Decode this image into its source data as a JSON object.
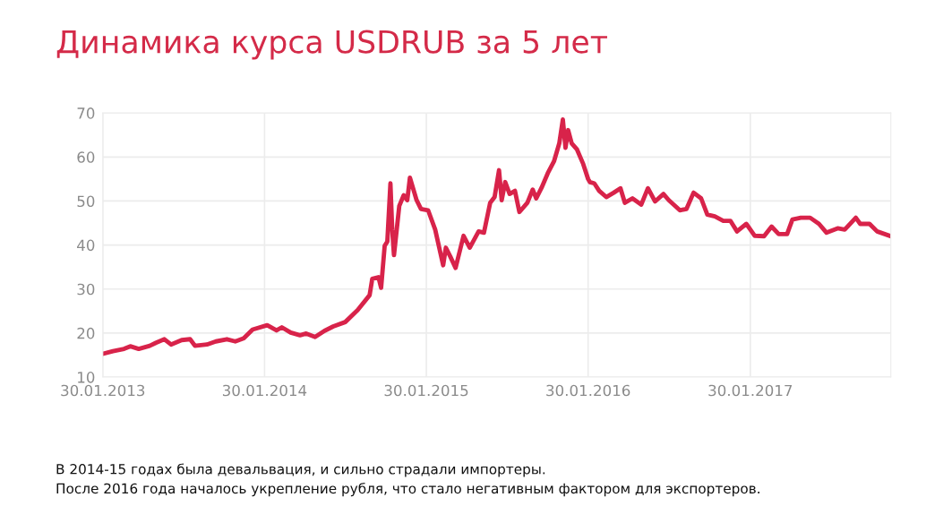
{
  "chart_data": {
    "type": "line",
    "title": "Динамика курса USDRUB за 5 лет",
    "annotations": [
      "В 2014-15 годах была девальвация, и сильно страдали импортеры.",
      "После 2016 года началось укрепление рубля, что стало негативным фактором для экспортеров."
    ],
    "x": [
      "2013-02-03",
      "2013-02-22",
      "2013-03-19",
      "2013-04-02",
      "2013-04-21",
      "2013-05-16",
      "2013-05-30",
      "2013-06-18",
      "2013-07-03",
      "2013-07-27",
      "2013-08-15",
      "2013-08-26",
      "2013-09-22",
      "2013-10-12",
      "2013-11-06",
      "2013-11-25",
      "2013-12-14",
      "2014-01-03",
      "2014-02-05",
      "2014-02-26",
      "2014-03-10",
      "2014-03-30",
      "2014-04-20",
      "2014-05-04",
      "2014-05-24",
      "2014-06-14",
      "2014-07-04",
      "2014-07-31",
      "2014-08-28",
      "2014-09-24",
      "2014-09-30",
      "2014-10-14",
      "2014-10-20",
      "2014-10-28",
      "2014-11-03",
      "2014-11-10",
      "2014-11-14",
      "2014-11-18",
      "2014-11-30",
      "2014-12-10",
      "2014-12-18",
      "2014-12-24",
      "2015-01-08",
      "2015-01-18",
      "2015-02-03",
      "2015-02-19",
      "2015-03-09",
      "2015-03-15",
      "2015-03-25",
      "2015-04-06",
      "2015-04-24",
      "2015-05-08",
      "2015-05-28",
      "2015-06-09",
      "2015-06-23",
      "2015-07-03",
      "2015-07-13",
      "2015-07-19",
      "2015-07-27",
      "2015-08-06",
      "2015-08-18",
      "2015-08-28",
      "2015-09-15",
      "2015-09-27",
      "2015-10-05",
      "2015-10-17",
      "2015-10-31",
      "2015-11-14",
      "2015-11-26",
      "2015-12-04",
      "2015-12-10",
      "2015-12-16",
      "2015-12-24",
      "2016-01-05",
      "2016-01-19",
      "2016-01-30",
      "2016-02-03",
      "2016-02-13",
      "2016-02-24",
      "2016-03-11",
      "2016-03-28",
      "2016-04-12",
      "2016-04-22",
      "2016-05-09",
      "2016-05-29",
      "2016-06-13",
      "2016-06-29",
      "2016-07-18",
      "2016-07-30",
      "2016-08-24",
      "2016-09-08",
      "2016-09-24",
      "2016-10-11",
      "2016-10-25",
      "2016-11-11",
      "2016-11-30",
      "2016-12-16",
      "2016-12-31",
      "2017-01-21",
      "2017-02-09",
      "2017-03-02",
      "2017-03-19",
      "2017-04-04",
      "2017-04-23",
      "2017-05-05",
      "2017-05-24",
      "2017-06-14",
      "2017-07-04",
      "2017-07-21",
      "2017-08-15",
      "2017-08-31",
      "2017-09-25",
      "2017-10-05",
      "2017-10-26",
      "2017-11-12",
      "2017-12-13"
    ],
    "series": [
      {
        "color": "#d8234a",
        "values": [
          15.4,
          15.9,
          16.4,
          17,
          16.4,
          17.1,
          17.8,
          18.6,
          17.4,
          18.4,
          18.6,
          17.1,
          17.4,
          18.1,
          18.6,
          18.1,
          18.8,
          20.8,
          21.8,
          20.6,
          21.3,
          20.1,
          19.5,
          19.9,
          19.1,
          20.5,
          21.5,
          22.5,
          25.2,
          28.6,
          32.3,
          32.7,
          30.3,
          39.8,
          40.8,
          54,
          43.5,
          37.7,
          48.9,
          51.3,
          50.2,
          55.3,
          50.2,
          48.2,
          47.9,
          43.5,
          35.4,
          39.4,
          37.4,
          34.8,
          42.1,
          39.4,
          43.1,
          42.8,
          49.6,
          50.9,
          57,
          50.2,
          54.3,
          51.6,
          52.3,
          47.5,
          49.6,
          52.6,
          50.6,
          53,
          56.3,
          59,
          63.1,
          68.5,
          62.1,
          66.1,
          63.1,
          61.7,
          58.4,
          55,
          54.3,
          54,
          52.3,
          50.9,
          51.9,
          52.9,
          49.6,
          50.6,
          49.2,
          52.9,
          49.9,
          51.6,
          50.2,
          47.9,
          48.2,
          51.9,
          50.6,
          46.9,
          46.5,
          45.5,
          45.5,
          43.1,
          44.8,
          42.1,
          42,
          44.2,
          42.5,
          42.5,
          45.8,
          46.2,
          46.2,
          44.8,
          42.8,
          43.8,
          43.5,
          46.2,
          44.8,
          44.8,
          43.1,
          42
        ]
      }
    ],
    "xlim": [
      "2013-01-30",
      "2017-12-13"
    ],
    "xticks": [
      {
        "value": "2013-01-30",
        "label": "30.01.2013"
      },
      {
        "value": "2014-01-30",
        "label": "30.01.2014"
      },
      {
        "value": "2015-01-30",
        "label": "30.01.2015"
      },
      {
        "value": "2016-01-30",
        "label": "30.01.2016"
      },
      {
        "value": "2017-01-30",
        "label": "30.01.2017"
      }
    ],
    "ylim": [
      10,
      70
    ],
    "yticks": [
      10,
      20,
      30,
      40,
      50,
      60,
      70
    ],
    "grid": true,
    "legend": false,
    "marker": "none",
    "line_style": "solid"
  }
}
